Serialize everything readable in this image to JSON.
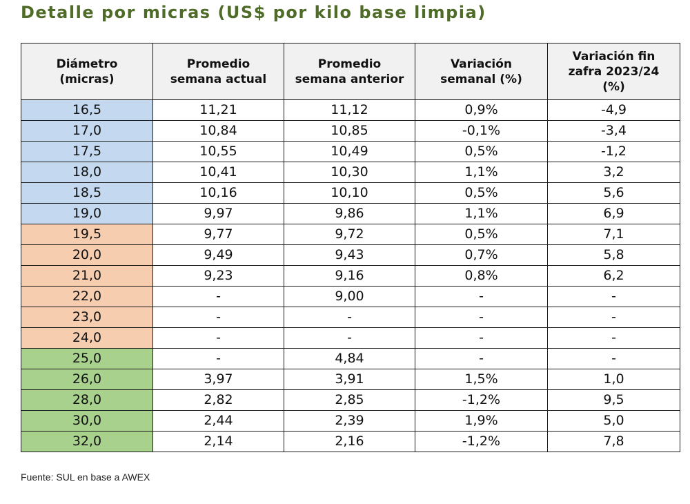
{
  "title": "Detalle por micras (US$ por kilo base limpia)",
  "colors": {
    "title": "#4f6b28",
    "header_bg": "#f1f1f1",
    "group_blue": "#c4d8ef",
    "group_orange": "#f7cdb0",
    "group_green": "#a9d18e"
  },
  "table": {
    "headers": [
      "Diámetro\n(micras)",
      "Promedio\nsemana actual",
      "Promedio\nsemana anterior",
      "Variación\nsemanal (%)",
      "Variación fin\nzafra 2023/24\n(%)"
    ],
    "rows": [
      {
        "micron": "16,5",
        "group": "blue",
        "actual": "11,21",
        "anterior": "11,12",
        "var_semanal": "0,9%",
        "var_zafra": "-4,9"
      },
      {
        "micron": "17,0",
        "group": "blue",
        "actual": "10,84",
        "anterior": "10,85",
        "var_semanal": "-0,1%",
        "var_zafra": "-3,4"
      },
      {
        "micron": "17,5",
        "group": "blue",
        "actual": "10,55",
        "anterior": "10,49",
        "var_semanal": "0,5%",
        "var_zafra": "-1,2"
      },
      {
        "micron": "18,0",
        "group": "blue",
        "actual": "10,41",
        "anterior": "10,30",
        "var_semanal": "1,1%",
        "var_zafra": "3,2"
      },
      {
        "micron": "18,5",
        "group": "blue",
        "actual": "10,16",
        "anterior": "10,10",
        "var_semanal": "0,5%",
        "var_zafra": "5,6"
      },
      {
        "micron": "19,0",
        "group": "blue",
        "actual": "9,97",
        "anterior": "9,86",
        "var_semanal": "1,1%",
        "var_zafra": "6,9"
      },
      {
        "micron": "19,5",
        "group": "orange",
        "actual": "9,77",
        "anterior": "9,72",
        "var_semanal": "0,5%",
        "var_zafra": "7,1"
      },
      {
        "micron": "20,0",
        "group": "orange",
        "actual": "9,49",
        "anterior": "9,43",
        "var_semanal": "0,7%",
        "var_zafra": "5,8"
      },
      {
        "micron": "21,0",
        "group": "orange",
        "actual": "9,23",
        "anterior": "9,16",
        "var_semanal": "0,8%",
        "var_zafra": "6,2"
      },
      {
        "micron": "22,0",
        "group": "orange",
        "actual": "-",
        "anterior": "9,00",
        "var_semanal": "-",
        "var_zafra": "-"
      },
      {
        "micron": "23,0",
        "group": "orange",
        "actual": "-",
        "anterior": "-",
        "var_semanal": "-",
        "var_zafra": "-"
      },
      {
        "micron": "24,0",
        "group": "orange",
        "actual": "-",
        "anterior": "-",
        "var_semanal": "-",
        "var_zafra": "-"
      },
      {
        "micron": "25,0",
        "group": "green",
        "actual": "-",
        "anterior": "4,84",
        "var_semanal": "-",
        "var_zafra": "-"
      },
      {
        "micron": "26,0",
        "group": "green",
        "actual": "3,97",
        "anterior": "3,91",
        "var_semanal": "1,5%",
        "var_zafra": "1,0"
      },
      {
        "micron": "28,0",
        "group": "green",
        "actual": "2,82",
        "anterior": "2,85",
        "var_semanal": "-1,2%",
        "var_zafra": "9,5"
      },
      {
        "micron": "30,0",
        "group": "green",
        "actual": "2,44",
        "anterior": "2,39",
        "var_semanal": "1,9%",
        "var_zafra": "5,0"
      },
      {
        "micron": "32,0",
        "group": "green",
        "actual": "2,14",
        "anterior": "2,16",
        "var_semanal": "-1,2%",
        "var_zafra": "7,8"
      }
    ]
  },
  "source": "Fuente: SUL en base a AWEX"
}
